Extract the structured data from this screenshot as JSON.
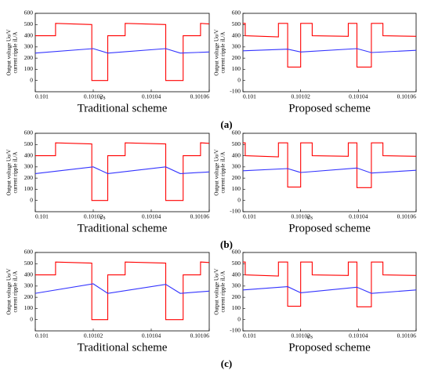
{
  "chart_data": [
    {
      "type": "line",
      "subtitle": "Traditional scheme",
      "xlabel": "t/s",
      "ylabel": [
        "Output voltage Uo/V",
        "current ripple iL/A"
      ],
      "xlim": [
        0.101,
        0.10106
      ],
      "xticks": [
        0.101,
        0.10102,
        0.10104,
        0.10106
      ],
      "ylim": [
        -100,
        600
      ],
      "yticks": [
        0,
        100,
        200,
        300,
        400,
        500,
        600
      ],
      "series": [
        {
          "color": "#ff0000",
          "x": [
            0.101,
            0.101007,
            0.101007,
            0.1010195,
            0.1010195,
            0.101025,
            0.101025,
            0.101031,
            0.101031,
            0.101045,
            0.101045,
            0.101051,
            0.101051,
            0.101057,
            0.101057,
            0.10106
          ],
          "values": [
            400,
            400,
            510,
            500,
            0,
            0,
            400,
            400,
            510,
            500,
            0,
            0,
            400,
            400,
            510,
            505
          ]
        },
        {
          "color": "#3333ff",
          "x": [
            0.101,
            0.10102,
            0.101025,
            0.101045,
            0.10105,
            0.10106
          ],
          "values": [
            245,
            285,
            245,
            285,
            245,
            255
          ]
        }
      ]
    },
    {
      "type": "line",
      "subtitle": "Proposed scheme",
      "ylabel": [
        "Output voltage Uo/V",
        "current ripple iL/A"
      ],
      "xlim": [
        0.101,
        0.10106
      ],
      "xticks": [
        0.101,
        0.10102,
        0.10104,
        0.10106
      ],
      "ylim": [
        -100,
        600
      ],
      "yticks": [
        -100,
        0,
        100,
        200,
        300,
        400,
        500,
        600
      ],
      "series": [
        {
          "color": "#ff0000",
          "x": [
            0.101,
            0.1010008,
            0.1010008,
            0.1010123,
            0.1010123,
            0.1010155,
            0.1010155,
            0.10102,
            0.10102,
            0.101024,
            0.101024,
            0.1010365,
            0.1010365,
            0.1010395,
            0.1010395,
            0.1010445,
            0.1010445,
            0.1010485,
            0.1010485,
            0.10106
          ],
          "values": [
            510,
            510,
            400,
            390,
            510,
            510,
            120,
            120,
            510,
            510,
            400,
            395,
            510,
            510,
            120,
            120,
            510,
            510,
            400,
            395
          ]
        },
        {
          "color": "#3333ff",
          "x": [
            0.101,
            0.1010155,
            0.10102,
            0.1010395,
            0.1010445,
            0.10106
          ],
          "values": [
            265,
            280,
            255,
            285,
            250,
            270
          ]
        }
      ]
    },
    {
      "type": "line",
      "subtitle": "Traditional scheme",
      "xlabel": "t/s",
      "ylabel": [
        "Output voltage Uo/V",
        "current ripple iL/A"
      ],
      "xlim": [
        0.101,
        0.10106
      ],
      "xticks": [
        0.101,
        0.10102,
        0.10104,
        0.10106
      ],
      "ylim": [
        -100,
        600
      ],
      "yticks": [
        0,
        100,
        200,
        300,
        400,
        500,
        600
      ],
      "series": [
        {
          "color": "#ff0000",
          "x": [
            0.101,
            0.101007,
            0.101007,
            0.1010195,
            0.1010195,
            0.101025,
            0.101025,
            0.101031,
            0.101031,
            0.101045,
            0.101045,
            0.101051,
            0.101051,
            0.101057,
            0.101057,
            0.10106
          ],
          "values": [
            400,
            400,
            515,
            505,
            0,
            0,
            400,
            400,
            515,
            505,
            0,
            0,
            400,
            400,
            515,
            510
          ]
        },
        {
          "color": "#3333ff",
          "x": [
            0.101,
            0.10102,
            0.101025,
            0.101045,
            0.10105,
            0.10106
          ],
          "values": [
            240,
            300,
            240,
            300,
            240,
            255
          ]
        }
      ]
    },
    {
      "type": "line",
      "subtitle": "Proposed scheme",
      "xlabel": "t/s",
      "ylabel": [
        "Output voltage Uo/V",
        "current ripple iL/A"
      ],
      "xlim": [
        0.101,
        0.10106
      ],
      "xticks": [
        0.101,
        0.10102,
        0.10104,
        0.10106
      ],
      "ylim": [
        -100,
        600
      ],
      "yticks": [
        -100,
        0,
        100,
        200,
        300,
        400,
        500,
        600
      ],
      "series": [
        {
          "color": "#ff0000",
          "x": [
            0.101,
            0.1010008,
            0.1010008,
            0.1010123,
            0.1010123,
            0.1010155,
            0.1010155,
            0.10102,
            0.10102,
            0.101024,
            0.101024,
            0.1010365,
            0.1010365,
            0.1010395,
            0.1010395,
            0.1010445,
            0.1010445,
            0.1010485,
            0.1010485,
            0.10106
          ],
          "values": [
            515,
            515,
            400,
            390,
            515,
            515,
            120,
            120,
            515,
            515,
            400,
            395,
            515,
            515,
            115,
            115,
            515,
            515,
            400,
            395
          ]
        },
        {
          "color": "#3333ff",
          "x": [
            0.101,
            0.1010155,
            0.10102,
            0.1010395,
            0.1010445,
            0.10106
          ],
          "values": [
            265,
            285,
            250,
            290,
            245,
            270
          ]
        }
      ]
    },
    {
      "type": "line",
      "subtitle": "Traditional scheme",
      "ylabel": [
        "Output voltage Uo/V",
        "current ripple iL/A"
      ],
      "xlim": [
        0.101,
        0.10106
      ],
      "xticks": [
        0.101,
        0.10102,
        0.10104,
        0.10106
      ],
      "ylim": [
        -100,
        600
      ],
      "yticks": [
        0,
        100,
        200,
        300,
        400,
        500,
        600
      ],
      "series": [
        {
          "color": "#ff0000",
          "x": [
            0.101,
            0.101007,
            0.101007,
            0.1010195,
            0.1010195,
            0.101025,
            0.101025,
            0.101031,
            0.101031,
            0.101045,
            0.101045,
            0.101051,
            0.101051,
            0.101057,
            0.101057,
            0.10106
          ],
          "values": [
            400,
            400,
            515,
            505,
            0,
            0,
            400,
            400,
            515,
            505,
            0,
            0,
            400,
            400,
            515,
            510
          ]
        },
        {
          "color": "#3333ff",
          "x": [
            0.101,
            0.10102,
            0.101025,
            0.101045,
            0.10105,
            0.10106
          ],
          "values": [
            235,
            320,
            235,
            315,
            235,
            255
          ]
        }
      ]
    },
    {
      "type": "line",
      "subtitle": "Proposed scheme",
      "xlabel": "t/s",
      "ylabel": [
        "Output voltage Uo/V",
        "current ripple iL/A"
      ],
      "xlim": [
        0.101,
        0.10106
      ],
      "xticks": [
        0.101,
        0.10102,
        0.10104,
        0.10106
      ],
      "ylim": [
        -100,
        600
      ],
      "yticks": [
        -100,
        0,
        100,
        200,
        300,
        400,
        500,
        600
      ],
      "series": [
        {
          "color": "#ff0000",
          "x": [
            0.101,
            0.1010008,
            0.1010008,
            0.1010123,
            0.1010123,
            0.1010155,
            0.1010155,
            0.10102,
            0.10102,
            0.101024,
            0.101024,
            0.1010365,
            0.1010365,
            0.1010395,
            0.1010395,
            0.1010445,
            0.1010445,
            0.1010485,
            0.1010485,
            0.10106
          ],
          "values": [
            515,
            515,
            400,
            390,
            515,
            515,
            120,
            120,
            515,
            515,
            400,
            395,
            515,
            515,
            115,
            115,
            515,
            515,
            400,
            395
          ]
        },
        {
          "color": "#3333ff",
          "x": [
            0.101,
            0.1010155,
            0.10102,
            0.1010395,
            0.1010445,
            0.10106
          ],
          "values": [
            265,
            295,
            240,
            290,
            235,
            265
          ]
        }
      ]
    }
  ],
  "panels": [
    "(a)",
    "(b)",
    "(c)"
  ]
}
